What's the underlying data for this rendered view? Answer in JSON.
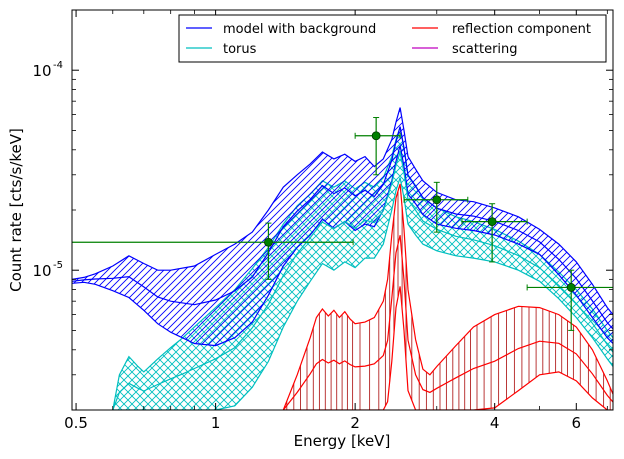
{
  "chart_data": {
    "type": "line",
    "xlabel": "Energy [keV]",
    "ylabel": "Count rate [cts/s/keV]",
    "xscale": "log",
    "yscale": "log",
    "xlim": [
      0.49,
      7.2
    ],
    "ylim": [
      2e-06,
      0.0002
    ],
    "xticks": [
      {
        "value": 0.5,
        "label": "0.5"
      },
      {
        "value": 1,
        "label": "1"
      },
      {
        "value": 2,
        "label": "2"
      },
      {
        "value": 4,
        "label": "4"
      },
      {
        "value": 6,
        "label": "6"
      }
    ],
    "yticks": [
      {
        "value": 1e-05,
        "base": "10",
        "exp": "-5"
      },
      {
        "value": 0.0001,
        "base": "10",
        "exp": "-4"
      }
    ],
    "legend": {
      "placement": "top-right",
      "entries": [
        {
          "label": "model with background",
          "color": "#0000ff"
        },
        {
          "label": "torus",
          "color": "#00bfbf"
        },
        {
          "label": "reflection component",
          "color": "#ff0000"
        },
        {
          "label": "scattering",
          "color": "#bf00bf"
        }
      ]
    },
    "series": [
      {
        "name": "model with background",
        "color": "#0000ff",
        "band": true,
        "hatch": "diagonal",
        "x": [
          0.49,
          0.52,
          0.55,
          0.6,
          0.65,
          0.7,
          0.75,
          0.8,
          0.9,
          1.0,
          1.1,
          1.2,
          1.3,
          1.4,
          1.5,
          1.6,
          1.7,
          1.8,
          1.9,
          2.0,
          2.1,
          2.2,
          2.3,
          2.4,
          2.45,
          2.5,
          2.55,
          2.6,
          2.7,
          2.8,
          3.0,
          3.3,
          3.6,
          4.0,
          4.5,
          5.0,
          5.5,
          6.0,
          6.5,
          7.0,
          7.2
        ],
        "upper": [
          9e-06,
          9.2e-06,
          9.6e-06,
          1.05e-05,
          1.18e-05,
          1.08e-05,
          1e-05,
          1e-05,
          1.05e-05,
          1.2e-05,
          1.35e-05,
          1.55e-05,
          2e-05,
          2.6e-05,
          3e-05,
          3.4e-05,
          3.9e-05,
          3.6e-05,
          3.8e-05,
          3.5e-05,
          3.7e-05,
          3.3e-05,
          3.6e-05,
          4.5e-05,
          5.5e-05,
          6.5e-05,
          5e-05,
          3.7e-05,
          3.2e-05,
          2.8e-05,
          2.45e-05,
          2.25e-05,
          2.2e-05,
          2.05e-05,
          1.85e-05,
          1.6e-05,
          1.35e-05,
          1.1e-05,
          8.5e-06,
          6.5e-06,
          6e-06
        ],
        "lower": [
          8.6e-06,
          8.7e-06,
          8.5e-06,
          7.9e-06,
          7.3e-06,
          6.3e-06,
          5.4e-06,
          4.9e-06,
          4.3e-06,
          4.2e-06,
          4.6e-06,
          5.5e-06,
          7.5e-06,
          1.05e-05,
          1.3e-05,
          1.5e-05,
          1.8e-05,
          1.62e-05,
          1.75e-05,
          1.58e-05,
          1.7e-05,
          1.65e-05,
          2e-05,
          2.8e-05,
          3.5e-05,
          4.2e-05,
          3.3e-05,
          2.4e-05,
          2.15e-05,
          1.9e-05,
          1.7e-05,
          1.62e-05,
          1.58e-05,
          1.5e-05,
          1.35e-05,
          1.2e-05,
          9.5e-06,
          7.5e-06,
          5.8e-06,
          4.6e-06,
          4.3e-06
        ]
      },
      {
        "name": "torus",
        "color": "#00bfbf",
        "band": true,
        "hatch": "cross",
        "x": [
          0.6,
          0.62,
          0.65,
          0.68,
          0.7,
          0.75,
          0.8,
          0.85,
          0.9,
          1.0,
          1.1,
          1.2,
          1.3,
          1.4,
          1.5,
          1.6,
          1.7,
          1.8,
          1.9,
          2.0,
          2.1,
          2.2,
          2.3,
          2.4,
          2.45,
          2.5,
          2.55,
          2.6,
          2.7,
          2.8,
          3.0,
          3.3,
          3.6,
          4.0,
          4.5,
          5.0,
          5.5,
          6.0,
          6.5,
          7.0,
          7.2
        ],
        "upper": [
          2e-06,
          3e-06,
          3.7e-06,
          3.3e-06,
          3.1e-06,
          3.6e-06,
          4.1e-06,
          4.6e-06,
          5.2e-06,
          6.5e-06,
          8e-06,
          1.02e-05,
          1.3e-05,
          1.7e-05,
          2.1e-05,
          2.4e-05,
          2.8e-05,
          2.6e-05,
          2.8e-05,
          2.55e-05,
          2.75e-05,
          2.6e-05,
          2.9e-05,
          3.7e-05,
          4.5e-05,
          5.2e-05,
          4.1e-05,
          3e-05,
          2.65e-05,
          2.3e-05,
          2.05e-05,
          1.85e-05,
          1.75e-05,
          1.6e-05,
          1.4e-05,
          1.2e-05,
          9.8e-06,
          8e-06,
          6.4e-06,
          5e-06,
          4.6e-06
        ],
        "lower": [
          2e-06,
          2e-06,
          2e-06,
          2e-06,
          2e-06,
          2e-06,
          2e-06,
          2e-06,
          2e-06,
          2e-06,
          2.1e-06,
          2.6e-06,
          3.5e-06,
          5.2e-06,
          7e-06,
          8.8e-06,
          1.08e-05,
          1e-05,
          1.1e-05,
          1.03e-05,
          1.15e-05,
          1.15e-05,
          1.35e-05,
          2e-05,
          2.5e-05,
          2.9e-05,
          2.3e-05,
          1.7e-05,
          1.5e-05,
          1.35e-05,
          1.25e-05,
          1.18e-05,
          1.15e-05,
          1.1e-05,
          1e-05,
          8.8e-06,
          7.2e-06,
          5.8e-06,
          4.6e-06,
          3.6e-06,
          3.3e-06
        ]
      },
      {
        "name": "reflection component",
        "color": "#ff0000",
        "band": true,
        "hatch": "vertical",
        "x": [
          1.4,
          1.5,
          1.6,
          1.65,
          1.7,
          1.75,
          1.8,
          1.85,
          1.9,
          1.95,
          2.0,
          2.1,
          2.2,
          2.3,
          2.35,
          2.4,
          2.45,
          2.5,
          2.55,
          2.6,
          2.7,
          2.8,
          2.9,
          3.0,
          3.3,
          3.6,
          4.0,
          4.5,
          5.0,
          5.5,
          6.0,
          6.5,
          7.0,
          7.2
        ],
        "upper": [
          2e-06,
          3e-06,
          4.6e-06,
          5.8e-06,
          6.4e-06,
          5.9e-06,
          6.3e-06,
          5.8e-06,
          6.2e-06,
          5.7e-06,
          5.4e-06,
          5.5e-06,
          5.8e-06,
          7e-06,
          9e-06,
          1.5e-05,
          2.3e-05,
          2.7e-05,
          1.6e-05,
          8e-06,
          4.5e-06,
          3.2e-06,
          3e-06,
          3.3e-06,
          4.2e-06,
          5.2e-06,
          6e-06,
          6.6e-06,
          6.5e-06,
          6e-06,
          5.2e-06,
          4e-06,
          2.8e-06,
          2.4e-06
        ],
        "lower": [
          2e-06,
          2e-06,
          2e-06,
          2e-06,
          2e-06,
          2e-06,
          2e-06,
          2e-06,
          2e-06,
          2e-06,
          2e-06,
          2e-06,
          2e-06,
          2e-06,
          2.2e-06,
          3.5e-06,
          6.5e-06,
          8.3e-06,
          5e-06,
          2.5e-06,
          2e-06,
          2e-06,
          2e-06,
          2e-06,
          2e-06,
          2e-06,
          2.05e-06,
          2.5e-06,
          3e-06,
          3.1e-06,
          2.8e-06,
          2.3e-06,
          2e-06,
          2e-06
        ]
      },
      {
        "name": "scattering",
        "color": "#bf00bf",
        "band": false,
        "x": [],
        "values": []
      }
    ],
    "data_points": {
      "color": "#008000",
      "points": [
        {
          "x": 1.3,
          "y": 1.38e-05,
          "xlo": 0.49,
          "xhi": 1.98,
          "ylo": 9e-06,
          "yhi": 1.72e-05
        },
        {
          "x": 2.22,
          "y": 4.7e-05,
          "xlo": 2.0,
          "xhi": 2.5,
          "ylo": 3e-05,
          "yhi": 5.8e-05
        },
        {
          "x": 3.0,
          "y": 2.25e-05,
          "xlo": 2.55,
          "xhi": 3.5,
          "ylo": 1.55e-05,
          "yhi": 2.75e-05
        },
        {
          "x": 3.95,
          "y": 1.75e-05,
          "xlo": 3.4,
          "xhi": 4.7,
          "ylo": 1.1e-05,
          "yhi": 2.15e-05
        },
        {
          "x": 5.85,
          "y": 8.2e-06,
          "xlo": 4.7,
          "xhi": 7.2,
          "ylo": 5e-06,
          "yhi": 1e-05
        }
      ]
    }
  }
}
